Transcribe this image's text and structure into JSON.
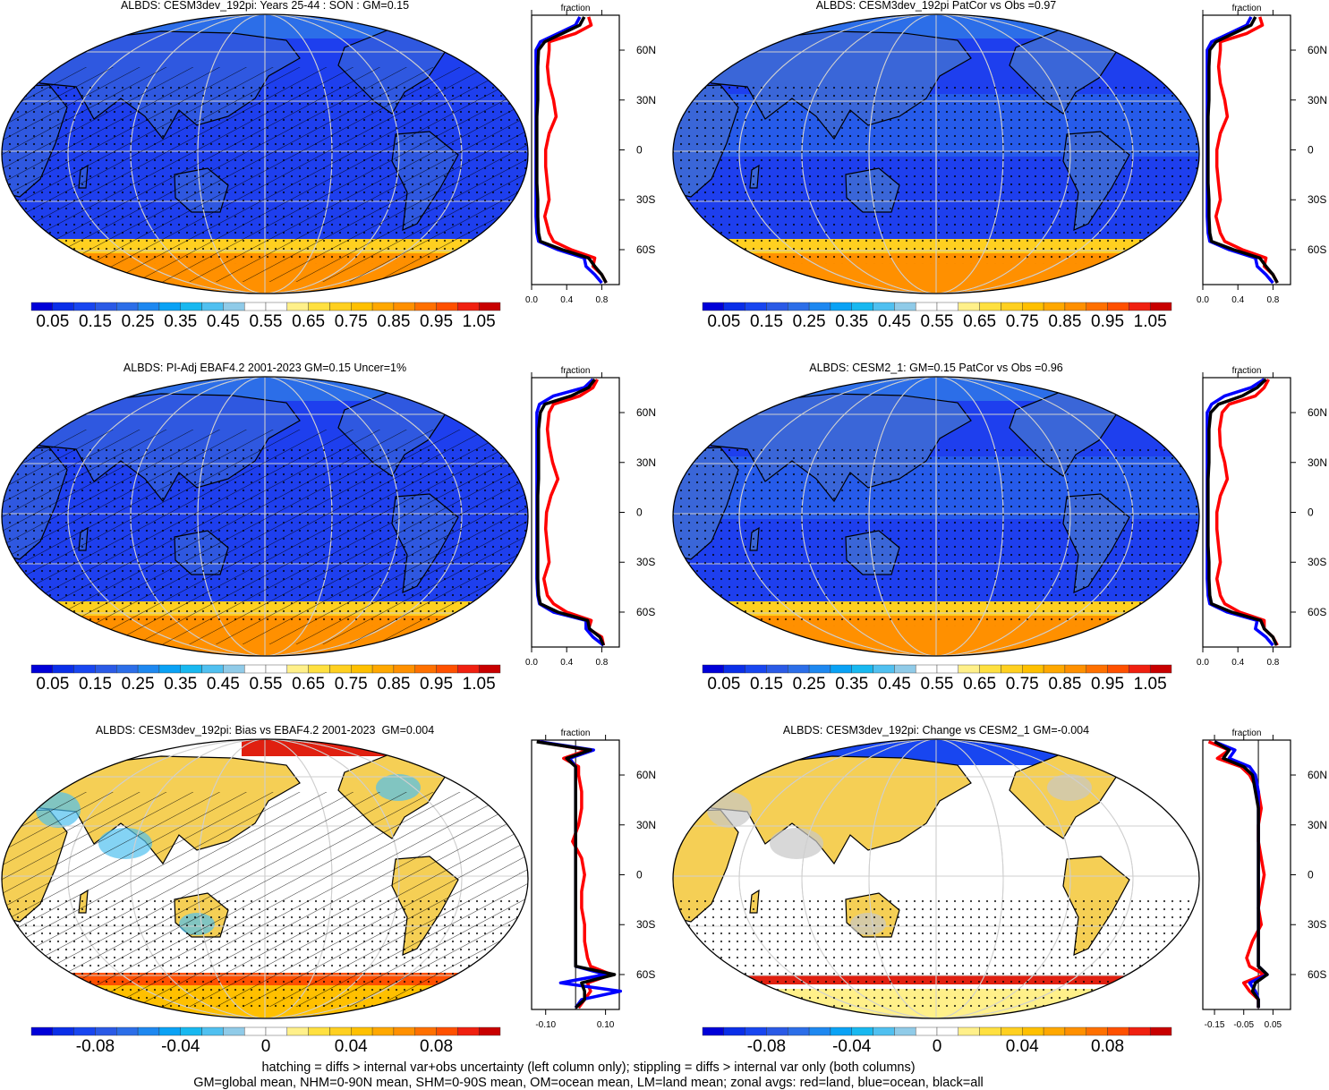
{
  "footer": {
    "line1": "hatching = diffs > internal var+obs uncertainty (left column only); stippling = diffs > internal var only (both columns)",
    "line2": "GM=global mean, NHM=0-90N mean, SHM=0-90S mean, OM=ocean mean, LM=land mean; zonal avgs: red=land, blue=ocean, black=all"
  },
  "colors": {
    "land": "#ff0000",
    "ocean": "#0000ff",
    "all": "#000000",
    "colorbar": [
      "#0000d8",
      "#0a2ee8",
      "#1846f0",
      "#2a5ae6",
      "#2c6ee8",
      "#1e88f0",
      "#0aa2f5",
      "#18b8f0",
      "#50c0f0",
      "#90cbe8",
      "#ffffff",
      "#ffffff",
      "#fff08a",
      "#ffe040",
      "#ffd020",
      "#ffc000",
      "#ffa800",
      "#ff9000",
      "#ff7000",
      "#ff5000",
      "#f02010",
      "#c80000"
    ]
  },
  "chart_data": [
    {
      "type": "map+line",
      "title": "ALBDS: CESM3dev_192pi: Years 25-44 : SON : GM=0.15",
      "colorbar": {
        "min": 0.0,
        "max": 1.1,
        "step": 0.05,
        "labels": [
          "0.05",
          "0.15",
          "0.25",
          "0.35",
          "0.45",
          "0.55",
          "0.65",
          "0.75",
          "0.85",
          "0.95",
          "1.05"
        ],
        "label_values": [
          0.05,
          0.15,
          0.25,
          0.35,
          0.45,
          0.55,
          0.65,
          0.75,
          0.85,
          0.95,
          1.05
        ]
      },
      "hatching": true,
      "stippling": true,
      "zonal": {
        "xlabel": "fraction",
        "xlim": [
          0,
          1.0
        ],
        "ylim": [
          -81,
          81
        ],
        "xticks": [
          0.0,
          0.4,
          0.8
        ],
        "xtick_labels": [
          "0.0",
          "0.4",
          "0.8"
        ],
        "yticks": [
          60,
          30,
          0,
          -30,
          -60
        ],
        "ytick_labels": [
          "60N",
          "30N",
          "0",
          "30S",
          "60S"
        ],
        "lat": [
          80,
          75,
          70,
          65,
          60,
          50,
          40,
          30,
          20,
          10,
          0,
          -10,
          -20,
          -30,
          -40,
          -50,
          -55,
          -60,
          -65,
          -70,
          -75,
          -80
        ],
        "series": [
          {
            "name": "land",
            "values": [
              0.65,
              0.68,
              0.5,
              0.2,
              0.2,
              0.18,
              0.2,
              0.25,
              0.28,
              0.2,
              0.16,
              0.16,
              0.18,
              0.2,
              0.15,
              0.2,
              0.25,
              0.45,
              0.72,
              0.7,
              0.8,
              0.85
            ]
          },
          {
            "name": "ocean",
            "values": [
              0.55,
              0.5,
              0.3,
              0.1,
              0.05,
              0.05,
              0.05,
              0.05,
              0.05,
              0.05,
              0.05,
              0.05,
              0.05,
              0.05,
              0.05,
              0.06,
              0.08,
              0.3,
              0.6,
              0.62,
              0.72,
              0.8
            ]
          },
          {
            "name": "all",
            "values": [
              0.6,
              0.55,
              0.35,
              0.15,
              0.08,
              0.07,
              0.07,
              0.07,
              0.06,
              0.06,
              0.06,
              0.06,
              0.06,
              0.07,
              0.07,
              0.08,
              0.1,
              0.35,
              0.65,
              0.72,
              0.8,
              0.85
            ]
          }
        ]
      }
    },
    {
      "type": "map+line",
      "title": "ALBDS: CESM3dev_192pi PatCor vs Obs =0.97",
      "colorbar": {
        "min": 0.0,
        "max": 1.1,
        "step": 0.05,
        "labels": [
          "0.05",
          "0.15",
          "0.25",
          "0.35",
          "0.45",
          "0.55",
          "0.65",
          "0.75",
          "0.85",
          "0.95",
          "1.05"
        ],
        "label_values": [
          0.05,
          0.15,
          0.25,
          0.35,
          0.45,
          0.55,
          0.65,
          0.75,
          0.85,
          0.95,
          1.05
        ]
      },
      "hatching": false,
      "stippling": true,
      "zonal": {
        "xlabel": "fraction",
        "xlim": [
          0,
          1.0
        ],
        "ylim": [
          -81,
          81
        ],
        "xticks": [
          0.0,
          0.4,
          0.8
        ],
        "xtick_labels": [
          "0.0",
          "0.4",
          "0.8"
        ],
        "yticks": [
          60,
          30,
          0,
          -30,
          -60
        ],
        "ytick_labels": [
          "60N",
          "30N",
          "0",
          "30S",
          "60S"
        ],
        "lat": [
          80,
          75,
          70,
          65,
          60,
          50,
          40,
          30,
          20,
          10,
          0,
          -10,
          -20,
          -30,
          -40,
          -50,
          -55,
          -60,
          -65,
          -70,
          -75,
          -80
        ],
        "series": [
          {
            "name": "land",
            "values": [
              0.65,
              0.68,
              0.5,
              0.2,
              0.2,
              0.18,
              0.2,
              0.25,
              0.28,
              0.2,
              0.16,
              0.16,
              0.18,
              0.2,
              0.15,
              0.2,
              0.25,
              0.45,
              0.72,
              0.7,
              0.8,
              0.85
            ]
          },
          {
            "name": "ocean",
            "values": [
              0.55,
              0.5,
              0.3,
              0.1,
              0.05,
              0.05,
              0.05,
              0.05,
              0.05,
              0.05,
              0.05,
              0.05,
              0.05,
              0.05,
              0.05,
              0.06,
              0.08,
              0.3,
              0.6,
              0.62,
              0.72,
              0.8
            ]
          },
          {
            "name": "all",
            "values": [
              0.6,
              0.55,
              0.35,
              0.15,
              0.08,
              0.07,
              0.07,
              0.07,
              0.06,
              0.06,
              0.06,
              0.06,
              0.06,
              0.07,
              0.07,
              0.08,
              0.1,
              0.35,
              0.65,
              0.72,
              0.8,
              0.85
            ]
          }
        ]
      }
    },
    {
      "type": "map+line",
      "title": "ALBDS: PI-Adj EBAF4.2 2001-2023 GM=0.15 Uncer=1%",
      "colorbar": {
        "min": 0.0,
        "max": 1.1,
        "step": 0.05,
        "labels": [
          "0.05",
          "0.15",
          "0.25",
          "0.35",
          "0.45",
          "0.55",
          "0.65",
          "0.75",
          "0.85",
          "0.95",
          "1.05"
        ],
        "label_values": [
          0.05,
          0.15,
          0.25,
          0.35,
          0.45,
          0.55,
          0.65,
          0.75,
          0.85,
          0.95,
          1.05
        ]
      },
      "hatching": true,
      "stippling": true,
      "zonal": {
        "xlabel": "fraction",
        "xlim": [
          0,
          1.0
        ],
        "ylim": [
          -81,
          81
        ],
        "xticks": [
          0.0,
          0.4,
          0.8
        ],
        "xtick_labels": [
          "0.0",
          "0.4",
          "0.8"
        ],
        "yticks": [
          60,
          30,
          0,
          -30,
          -60
        ],
        "ytick_labels": [
          "60N",
          "30N",
          "0",
          "30S",
          "60S"
        ],
        "lat": [
          80,
          75,
          70,
          65,
          60,
          50,
          40,
          30,
          20,
          10,
          0,
          -10,
          -20,
          -30,
          -40,
          -50,
          -55,
          -60,
          -65,
          -70,
          -75,
          -80
        ],
        "series": [
          {
            "name": "land",
            "values": [
              0.75,
              0.7,
              0.55,
              0.25,
              0.2,
              0.18,
              0.2,
              0.24,
              0.3,
              0.22,
              0.17,
              0.16,
              0.18,
              0.2,
              0.14,
              0.18,
              0.25,
              0.4,
              0.68,
              0.65,
              0.8,
              0.82
            ]
          },
          {
            "name": "ocean",
            "values": [
              0.7,
              0.6,
              0.25,
              0.09,
              0.06,
              0.06,
              0.06,
              0.06,
              0.06,
              0.06,
              0.06,
              0.06,
              0.06,
              0.06,
              0.06,
              0.07,
              0.09,
              0.25,
              0.62,
              0.62,
              0.7,
              0.82
            ]
          },
          {
            "name": "all",
            "values": [
              0.72,
              0.65,
              0.45,
              0.15,
              0.1,
              0.08,
              0.08,
              0.08,
              0.08,
              0.07,
              0.07,
              0.07,
              0.07,
              0.07,
              0.07,
              0.08,
              0.1,
              0.3,
              0.64,
              0.66,
              0.78,
              0.82
            ]
          }
        ]
      }
    },
    {
      "type": "map+line",
      "title": "ALBDS: CESM2_1: GM=0.15 PatCor vs Obs =0.96",
      "colorbar": {
        "min": 0.0,
        "max": 1.1,
        "step": 0.05,
        "labels": [
          "0.05",
          "0.15",
          "0.25",
          "0.35",
          "0.45",
          "0.55",
          "0.65",
          "0.75",
          "0.85",
          "0.95",
          "1.05"
        ],
        "label_values": [
          0.05,
          0.15,
          0.25,
          0.35,
          0.45,
          0.55,
          0.65,
          0.75,
          0.85,
          0.95,
          1.05
        ]
      },
      "hatching": false,
      "stippling": true,
      "zonal": {
        "xlabel": "fraction",
        "xlim": [
          0,
          1.0
        ],
        "ylim": [
          -81,
          81
        ],
        "xticks": [
          0.0,
          0.4,
          0.8
        ],
        "xtick_labels": [
          "0.0",
          "0.4",
          "0.8"
        ],
        "yticks": [
          60,
          30,
          0,
          -30,
          -60
        ],
        "ytick_labels": [
          "60N",
          "30N",
          "0",
          "30S",
          "60S"
        ],
        "lat": [
          80,
          75,
          70,
          65,
          60,
          50,
          40,
          30,
          20,
          10,
          0,
          -10,
          -20,
          -30,
          -40,
          -50,
          -55,
          -60,
          -65,
          -70,
          -75,
          -80
        ],
        "series": [
          {
            "name": "land",
            "values": [
              0.75,
              0.7,
              0.6,
              0.3,
              0.22,
              0.19,
              0.2,
              0.25,
              0.28,
              0.2,
              0.16,
              0.16,
              0.18,
              0.2,
              0.16,
              0.2,
              0.25,
              0.42,
              0.7,
              0.7,
              0.8,
              0.85
            ]
          },
          {
            "name": "ocean",
            "values": [
              0.7,
              0.55,
              0.25,
              0.1,
              0.05,
              0.05,
              0.05,
              0.05,
              0.05,
              0.05,
              0.05,
              0.05,
              0.05,
              0.05,
              0.05,
              0.06,
              0.08,
              0.28,
              0.62,
              0.6,
              0.72,
              0.8
            ]
          },
          {
            "name": "all",
            "values": [
              0.72,
              0.62,
              0.45,
              0.18,
              0.09,
              0.07,
              0.07,
              0.07,
              0.06,
              0.06,
              0.06,
              0.06,
              0.06,
              0.07,
              0.07,
              0.08,
              0.1,
              0.33,
              0.66,
              0.7,
              0.8,
              0.84
            ]
          }
        ]
      }
    },
    {
      "type": "map+line",
      "title": "ALBDS: CESM3dev_192pi: Bias vs EBAF4.2 2001-2023  GM=0.004",
      "colorbar": {
        "min": -0.11,
        "max": 0.11,
        "step": 0.01,
        "labels": [
          "-0.08",
          "-0.04",
          "0",
          "0.04",
          "0.08"
        ],
        "label_values": [
          -0.08,
          -0.04,
          0,
          0.04,
          0.08
        ]
      },
      "hatching": true,
      "stippling": true,
      "zonal": {
        "xlabel": "fraction",
        "xlim": [
          -0.147,
          0.146
        ],
        "ylim": [
          -81,
          81
        ],
        "zero_line": true,
        "xticks": [
          -0.1,
          0.1
        ],
        "xtick_labels": [
          "-0.10",
          "0.10"
        ],
        "yticks": [
          60,
          30,
          0,
          -30,
          -60
        ],
        "ytick_labels": [
          "60N",
          "30N",
          "0",
          "30S",
          "60S"
        ],
        "lat": [
          80,
          75,
          70,
          65,
          60,
          50,
          40,
          30,
          20,
          10,
          0,
          -10,
          -20,
          -30,
          -40,
          -50,
          -55,
          -60,
          -65,
          -70,
          -75,
          -80
        ],
        "series": [
          {
            "name": "land",
            "values": [
              -0.12,
              0.04,
              -0.04,
              0.01,
              0.01,
              0.02,
              0.02,
              0.01,
              -0.01,
              0.02,
              0.03,
              0.02,
              0.02,
              0.03,
              0.03,
              0.04,
              0.05,
              0.12,
              0.04,
              0.05,
              0.03,
              0.01
            ]
          },
          {
            "name": "ocean",
            "values": [
              -0.12,
              0.06,
              -0.02,
              0.0,
              0.0,
              0.0,
              0.0,
              0.0,
              0.0,
              0.0,
              0.0,
              0.0,
              0.0,
              0.0,
              0.0,
              0.0,
              0.0,
              0.1,
              -0.05,
              0.15,
              0.02,
              0.0
            ]
          },
          {
            "name": "all",
            "values": [
              -0.13,
              0.05,
              -0.03,
              0.0,
              0.0,
              0.0,
              0.0,
              0.0,
              0.0,
              0.0,
              0.0,
              0.0,
              0.0,
              0.0,
              0.0,
              0.0,
              0.0,
              0.13,
              0.02,
              0.03,
              0.03,
              0.0
            ]
          }
        ]
      }
    },
    {
      "type": "map+line",
      "title": "ALBDS: CESM3dev_192pi: Change vs CESM2_1 GM=-0.004",
      "colorbar": {
        "min": -0.11,
        "max": 0.11,
        "step": 0.01,
        "labels": [
          "-0.08",
          "-0.04",
          "0",
          "0.04",
          "0.08"
        ],
        "label_values": [
          -0.08,
          -0.04,
          0,
          0.04,
          0.08
        ]
      },
      "hatching": false,
      "stippling": true,
      "zonal": {
        "xlabel": "fraction",
        "xlim": [
          -0.19,
          0.11
        ],
        "ylim": [
          -81,
          81
        ],
        "zero_line": true,
        "xticks": [
          -0.15,
          -0.05,
          0.05
        ],
        "xtick_labels": [
          "-0.15",
          "-0.05",
          "0.05"
        ],
        "yticks": [
          60,
          30,
          0,
          -30,
          -60
        ],
        "ytick_labels": [
          "60N",
          "30N",
          "0",
          "30S",
          "60S"
        ],
        "lat": [
          80,
          75,
          70,
          65,
          60,
          50,
          40,
          30,
          20,
          10,
          0,
          -10,
          -20,
          -30,
          -40,
          -50,
          -55,
          -60,
          -65,
          -70,
          -75,
          -80
        ],
        "series": [
          {
            "name": "land",
            "values": [
              -0.17,
              -0.1,
              -0.14,
              -0.06,
              -0.03,
              0.0,
              0.01,
              0.0,
              0.0,
              0.01,
              0.02,
              0.01,
              0.0,
              0.01,
              -0.02,
              -0.04,
              -0.03,
              0.02,
              -0.05,
              -0.03,
              0.0,
              0.0
            ]
          },
          {
            "name": "ocean",
            "values": [
              -0.15,
              -0.08,
              -0.1,
              -0.03,
              -0.01,
              0,
              0,
              0,
              0,
              0,
              0,
              0,
              0,
              0,
              0,
              0,
              0,
              0.03,
              -0.03,
              -0.01,
              0,
              0
            ]
          },
          {
            "name": "all",
            "values": [
              -0.15,
              -0.1,
              -0.12,
              -0.05,
              -0.02,
              -0.01,
              0,
              0,
              0,
              0,
              0,
              0,
              0,
              0,
              0,
              0,
              0,
              0.03,
              -0.01,
              -0.02,
              0,
              0
            ]
          }
        ]
      }
    }
  ]
}
